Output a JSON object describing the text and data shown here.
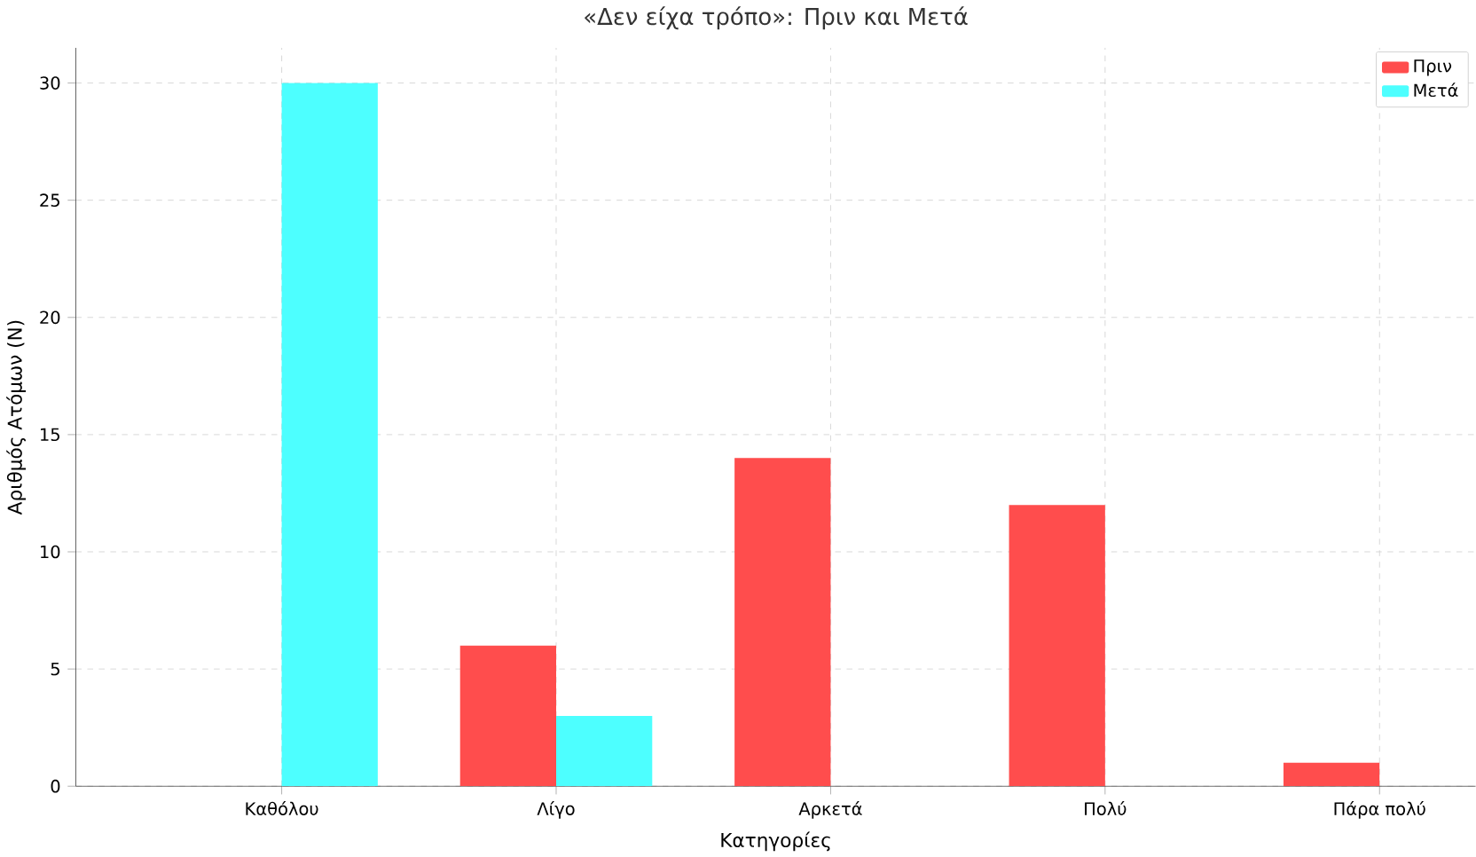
{
  "chart_data": {
    "type": "bar",
    "title": "«Δεν είχα τρόπο»: Πριν και Μετά",
    "xlabel": "Κατηγορίες",
    "ylabel": "Αριθμός Ατόμων (N)",
    "categories": [
      "Καθόλου",
      "Λίγο",
      "Αρκετά",
      "Πολύ",
      "Πάρα πολύ"
    ],
    "series": [
      {
        "name": "Πριν",
        "color": "#ff4d4d",
        "values": [
          0,
          6,
          14,
          12,
          1
        ]
      },
      {
        "name": "Μετά",
        "color": "#4dffff",
        "values": [
          30,
          3,
          0,
          0,
          0
        ]
      }
    ],
    "ylim": [
      0,
      31.5
    ],
    "yticks": [
      0,
      5,
      10,
      15,
      20,
      25,
      30
    ],
    "grid": true,
    "legend": "top right"
  }
}
